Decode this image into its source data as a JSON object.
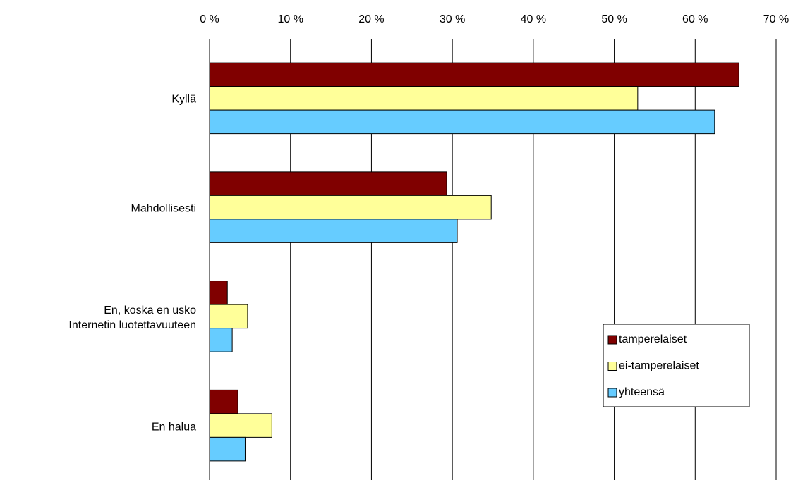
{
  "chart_data": {
    "type": "bar",
    "orientation": "horizontal",
    "categories": [
      "Kyllä",
      "Mahdollisesti",
      "En, koska en usko\nInternetin luotettavuuteen",
      "En halua"
    ],
    "series": [
      {
        "name": "tamperelaiset",
        "color": "#800000",
        "values": [
          65.4,
          29.3,
          2.2,
          3.5
        ]
      },
      {
        "name": "ei-tamperelaiset",
        "color": "#ffff99",
        "values": [
          52.9,
          34.8,
          4.7,
          7.7
        ]
      },
      {
        "name": "yhteensä",
        "color": "#66ccff",
        "values": [
          62.4,
          30.6,
          2.8,
          4.4
        ]
      }
    ],
    "xlim": [
      0,
      70
    ],
    "xticks": [
      {
        "value": 0,
        "label": "0 %"
      },
      {
        "value": 10,
        "label": "10 %"
      },
      {
        "value": 20,
        "label": "20 %"
      },
      {
        "value": 30,
        "label": "30 %"
      },
      {
        "value": 40,
        "label": "40 %"
      },
      {
        "value": 50,
        "label": "50 %"
      },
      {
        "value": 60,
        "label": "60 %"
      },
      {
        "value": 70,
        "label": "70 %"
      }
    ],
    "grid": true,
    "legend": "lower right"
  }
}
